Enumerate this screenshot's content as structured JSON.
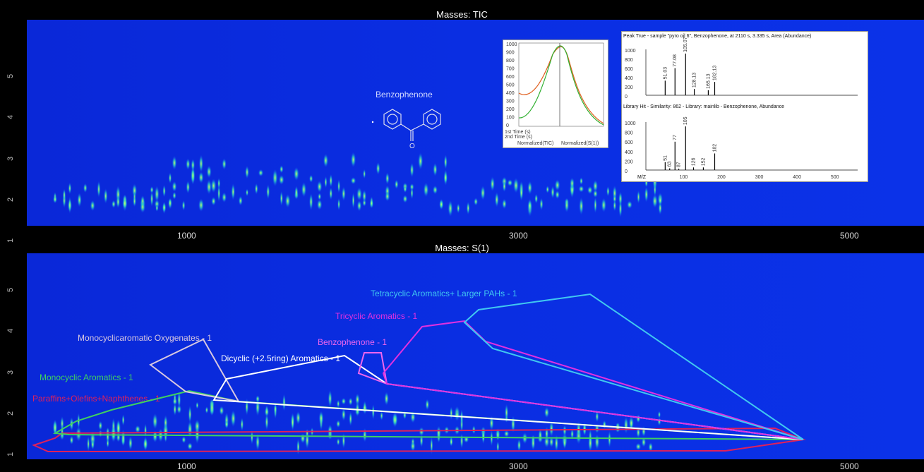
{
  "top": {
    "title": "Masses:  TIC",
    "compound_label": "Benzophenone",
    "yticks": [
      "1",
      "2",
      "3",
      "4",
      "5"
    ],
    "xticks": [
      "1000",
      "3000",
      "5000"
    ]
  },
  "bottom": {
    "title": "Masses:  S(1)",
    "yticks": [
      "1",
      "2",
      "3",
      "4",
      "5"
    ],
    "xticks": [
      "1000",
      "3000",
      "5000"
    ],
    "regions": [
      {
        "label": "Paraffins+Olefins+Naphthenes - 1",
        "color": "#e0205a"
      },
      {
        "label": "Monocyclic Aromatics - 1",
        "color": "#3fd060"
      },
      {
        "label": "Monocyclicaromatic Oxygenates - 1",
        "color": "#d8c8e0"
      },
      {
        "label": "Dicyclic (+2.5ring) Aromatics - 1",
        "color": "#ffffff"
      },
      {
        "label": "Benzophenone - 1",
        "color": "#ee66ee"
      },
      {
        "label": "Tricyclic Aromatics - 1",
        "color": "#e030e0"
      },
      {
        "label": "Tetracyclic Aromatics+ Larger PAHs - 1",
        "color": "#40c8f0"
      }
    ]
  },
  "inset_peak": {
    "xlabels": [
      "1st Time (s)",
      "2nd Time (s)"
    ],
    "legend": [
      "Normalized(TIC)",
      "Normalized(S(1))"
    ],
    "yticks": [
      "1000",
      "900",
      "800",
      "700",
      "600",
      "500",
      "400",
      "300",
      "200",
      "100",
      "0"
    ]
  },
  "inset_spectrum": {
    "title": "Peak True - sample \"pyro oil 6\", Benzophenone, at 2110 s, 3.335 s, Area (Abundance)",
    "peaks_top": [
      "51.03",
      "77.08",
      "105.07",
      "128.13",
      "165.13",
      "182.13"
    ],
    "yticks": [
      "1000",
      "800",
      "600",
      "400",
      "200",
      "0"
    ],
    "lib_title": "Library Hit - Similarity: 862 - Library: mainlib - Benzophenone, Abundance",
    "peaks_bottom": [
      "51",
      "63",
      "77",
      "87",
      "105",
      "126",
      "152",
      "182"
    ],
    "xaxis_label": "M/Z",
    "xticks": [
      "100",
      "200",
      "300",
      "400",
      "500"
    ]
  },
  "chart_data": {
    "type": "heatmap",
    "panels": [
      {
        "title": "Masses:  TIC",
        "x_ticks": [
          1000,
          3000,
          5000
        ],
        "y_ticks": [
          1,
          2,
          3,
          4,
          5
        ],
        "xlim": [
          0,
          5700
        ],
        "ylim": [
          0.8,
          5.7
        ]
      },
      {
        "title": "Masses:  S(1)",
        "x_ticks": [
          1000,
          3000,
          5000
        ],
        "y_ticks": [
          1,
          2,
          3,
          4,
          5
        ],
        "xlim": [
          0,
          5700
        ],
        "ylim": [
          0.8,
          5.7
        ]
      }
    ],
    "spectrum": {
      "type": "bar",
      "peak_true": [
        {
          "mz": 51,
          "ab": 350
        },
        {
          "mz": 77,
          "ab": 650
        },
        {
          "mz": 105,
          "ab": 1000
        },
        {
          "mz": 128,
          "ab": 150
        },
        {
          "mz": 165,
          "ab": 120
        },
        {
          "mz": 182,
          "ab": 320
        }
      ],
      "library": [
        {
          "mz": 51,
          "ab": 180
        },
        {
          "mz": 63,
          "ab": 40
        },
        {
          "mz": 77,
          "ab": 650
        },
        {
          "mz": 87,
          "ab": 30
        },
        {
          "mz": 105,
          "ab": 1000
        },
        {
          "mz": 126,
          "ab": 60
        },
        {
          "mz": 152,
          "ab": 60
        },
        {
          "mz": 182,
          "ab": 380
        }
      ],
      "xlim": [
        0,
        560
      ],
      "ylim": [
        0,
        1100
      ]
    }
  }
}
